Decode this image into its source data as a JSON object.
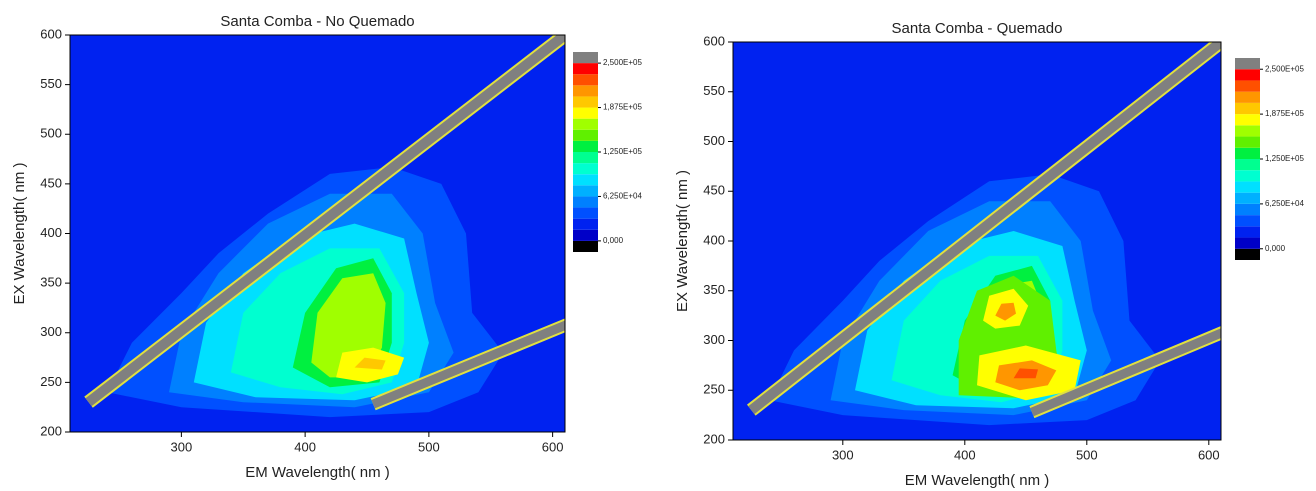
{
  "chart_data": [
    {
      "type": "contour",
      "title": "Santa Comba - No Quemado",
      "xlabel": "EM Wavelength( nm )",
      "ylabel": "EX Wavelength( nm )",
      "xlim": [
        210,
        610
      ],
      "xticks": [
        300,
        400,
        500,
        600
      ],
      "ylim": [
        200,
        600
      ],
      "yticks": [
        200,
        250,
        300,
        350,
        400,
        450,
        500,
        550,
        600
      ],
      "colorbar": {
        "levels": [
          0,
          15625,
          31250,
          46875,
          62500,
          78125,
          93750,
          109375,
          125000,
          140625,
          156250,
          171875,
          187500,
          203125,
          218750,
          234375,
          250000
        ],
        "colors": [
          "#000000",
          "#0000c8",
          "#0022f0",
          "#0050ff",
          "#0080ff",
          "#00b0ff",
          "#00e0ff",
          "#00ffd0",
          "#00ff90",
          "#00f040",
          "#60f000",
          "#a0ff00",
          "#ffff00",
          "#ffc800",
          "#ff9600",
          "#ff5000",
          "#ff0000",
          "#808080"
        ],
        "ticks": [
          {
            "value": 0,
            "label": "0,000"
          },
          {
            "value": 62500,
            "label": "6,250E+04"
          },
          {
            "value": 125000,
            "label": "1,250E+05"
          },
          {
            "value": 187500,
            "label": "1,875E+05"
          },
          {
            "value": 250000,
            "label": "2,500E+05"
          }
        ]
      }
    },
    {
      "type": "contour",
      "title": "Santa Comba - Quemado",
      "xlabel": "EM Wavelength( nm )",
      "ylabel": "EX Wavelength( nm )",
      "xlim": [
        210,
        610
      ],
      "xticks": [
        300,
        400,
        500,
        600
      ],
      "ylim": [
        200,
        600
      ],
      "yticks": [
        200,
        250,
        300,
        350,
        400,
        450,
        500,
        550,
        600
      ],
      "colorbar": {
        "levels": [
          0,
          15625,
          31250,
          46875,
          62500,
          78125,
          93750,
          109375,
          125000,
          140625,
          156250,
          171875,
          187500,
          203125,
          218750,
          234375,
          250000
        ],
        "colors": [
          "#000000",
          "#0000c8",
          "#0022f0",
          "#0050ff",
          "#0080ff",
          "#00b0ff",
          "#00e0ff",
          "#00ffd0",
          "#00ff90",
          "#00f040",
          "#60f000",
          "#a0ff00",
          "#ffff00",
          "#ffc800",
          "#ff9600",
          "#ff5000",
          "#ff0000",
          "#808080"
        ],
        "ticks": [
          {
            "value": 0,
            "label": "0,000"
          },
          {
            "value": 62500,
            "label": "6,250E+04"
          },
          {
            "value": 125000,
            "label": "1,250E+05"
          },
          {
            "value": 187500,
            "label": "1,875E+05"
          },
          {
            "value": 250000,
            "label": "2,500E+05"
          }
        ]
      }
    }
  ]
}
